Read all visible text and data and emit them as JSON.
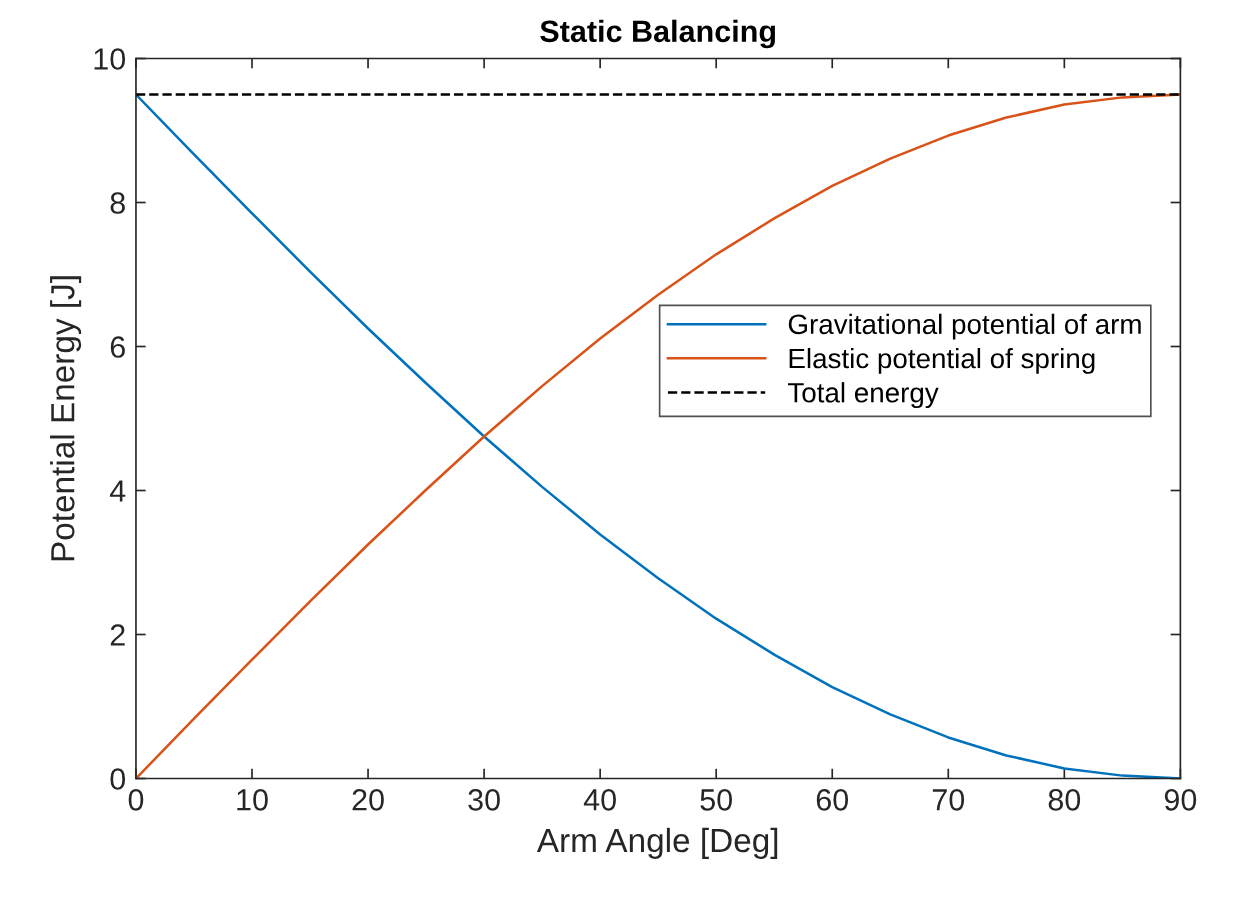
{
  "chart_data": {
    "type": "line",
    "title": "Static Balancing",
    "xlabel": "Arm Angle [Deg]",
    "ylabel": "Potential Energy [J]",
    "x": [
      0,
      5,
      10,
      15,
      20,
      25,
      30,
      35,
      40,
      45,
      50,
      55,
      60,
      65,
      70,
      75,
      80,
      85,
      90
    ],
    "series": [
      {
        "name": "Gravitational potential of arm",
        "color": "#0072bd",
        "values": [
          9.5,
          8.67,
          7.85,
          7.04,
          6.25,
          5.49,
          4.75,
          4.05,
          3.39,
          2.78,
          2.22,
          1.72,
          1.27,
          0.89,
          0.57,
          0.32,
          0.14,
          0.04,
          0
        ]
      },
      {
        "name": "Elastic potential of spring",
        "color": "#d95319",
        "values": [
          0,
          0.83,
          1.65,
          2.46,
          3.25,
          4.01,
          4.75,
          5.45,
          6.11,
          6.72,
          7.28,
          7.78,
          8.23,
          8.61,
          8.93,
          9.18,
          9.36,
          9.46,
          9.5
        ]
      },
      {
        "name": "Total energy",
        "color": "#000000",
        "line_style": "dashed",
        "x": [
          0,
          90
        ],
        "values": [
          9.5,
          9.5
        ]
      }
    ],
    "xlim": [
      0,
      90
    ],
    "ylim": [
      0,
      10
    ],
    "xticks": [
      0,
      10,
      20,
      30,
      40,
      50,
      60,
      70,
      80,
      90
    ],
    "yticks": [
      0,
      2,
      4,
      6,
      8,
      10
    ],
    "grid": false,
    "legend": "right",
    "marker": "none"
  }
}
